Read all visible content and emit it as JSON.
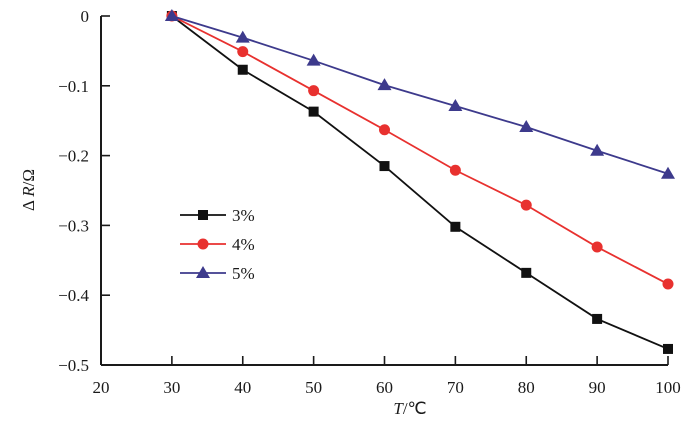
{
  "chart_data": {
    "type": "line",
    "title": "",
    "xlabel_italic": "T",
    "xlabel_unit": "/℃",
    "ylabel_prefix": "Δ ",
    "ylabel_italic": "R",
    "ylabel_unit": "/Ω",
    "xlim": [
      20,
      100
    ],
    "ylim": [
      -0.5,
      0
    ],
    "x_ticks": [
      20,
      30,
      40,
      50,
      60,
      70,
      80,
      90,
      100
    ],
    "x_tick_labels": [
      "20",
      "30",
      "40",
      "50",
      "60",
      "70",
      "80",
      "90",
      "100"
    ],
    "y_ticks": [
      0,
      -0.1,
      -0.2,
      -0.3,
      -0.4,
      -0.5
    ],
    "y_tick_labels": [
      "0",
      "−0.1",
      "−0.2",
      "−0.3",
      "−0.4",
      "−0.5"
    ],
    "grid": false,
    "legend_position": "center-left",
    "x": [
      30,
      40,
      50,
      60,
      70,
      80,
      90,
      100
    ],
    "series": [
      {
        "name": "3%",
        "marker": "square",
        "color": "#111111",
        "values": [
          0,
          -0.077,
          -0.137,
          -0.215,
          -0.302,
          -0.368,
          -0.434,
          -0.477
        ]
      },
      {
        "name": "4%",
        "marker": "circle",
        "color": "#e8312f",
        "values": [
          0,
          -0.051,
          -0.107,
          -0.163,
          -0.221,
          -0.271,
          -0.331,
          -0.384
        ]
      },
      {
        "name": "5%",
        "marker": "triangle",
        "color": "#3d3a8c",
        "values": [
          0,
          -0.031,
          -0.064,
          -0.099,
          -0.129,
          -0.159,
          -0.193,
          -0.226
        ]
      }
    ]
  }
}
